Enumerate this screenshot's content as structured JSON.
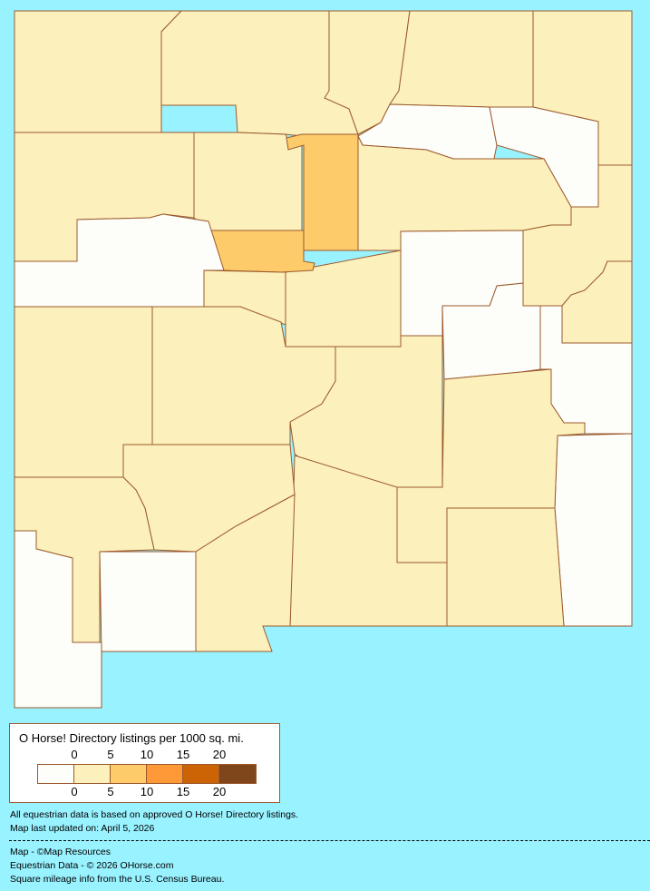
{
  "colors": {
    "background": "#99f2ff",
    "border": "#9c5a2c"
  },
  "legend": {
    "title": "O Horse! Directory listings per 1000 sq. mi.",
    "ticks_top": [
      "0",
      "5",
      "10",
      "15",
      "20"
    ],
    "ticks_bottom": [
      "0",
      "5",
      "10",
      "15",
      "20"
    ],
    "bins": [
      "#fdfdfa",
      "#fcf0bc",
      "#fdcb6a",
      "#fd9a37",
      "#cc6304",
      "#7f461b"
    ]
  },
  "county_bins": [
    1,
    1,
    1,
    1,
    1,
    0,
    0,
    1,
    1,
    1,
    0,
    0,
    1,
    0,
    1,
    1,
    1,
    1,
    2,
    1,
    2,
    0,
    1,
    1,
    1,
    1,
    0,
    0,
    1
  ],
  "footer": {
    "note": "All equestrian data is based on approved O Horse! Directory listings.",
    "updated": "Map last updated on: April 5, 2026",
    "map_credit": "Map - ©Map Resources",
    "data_credit": "Equestrian Data - © 2026 OHorse.com",
    "census_credit": "Square mileage info from the U.S. Census Bureau."
  }
}
